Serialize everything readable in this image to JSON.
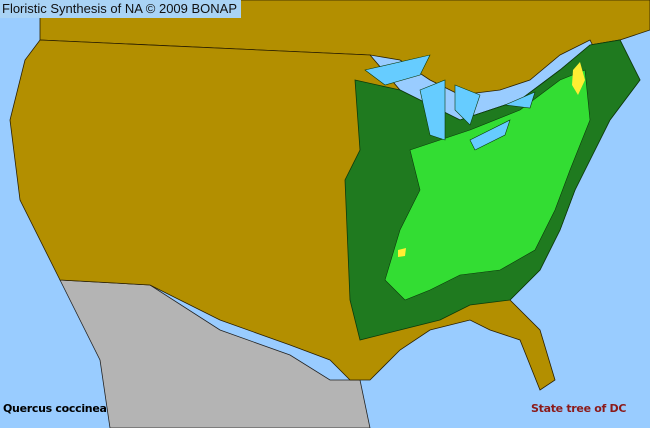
{
  "header": {
    "title": "Floristic Synthesis of NA © 2009 BONAP"
  },
  "map": {
    "species": "Quercus coccinea",
    "note": "State tree of DC",
    "colors": {
      "water": "#99ccff",
      "land_absent": "#b38f00",
      "present_state": "#1f7a1f",
      "present_county": "#33dd33",
      "rare_or_noxious": "#ffee33",
      "outside_region": "#b4b4b4",
      "county_lines": "#3a2a00"
    }
  }
}
